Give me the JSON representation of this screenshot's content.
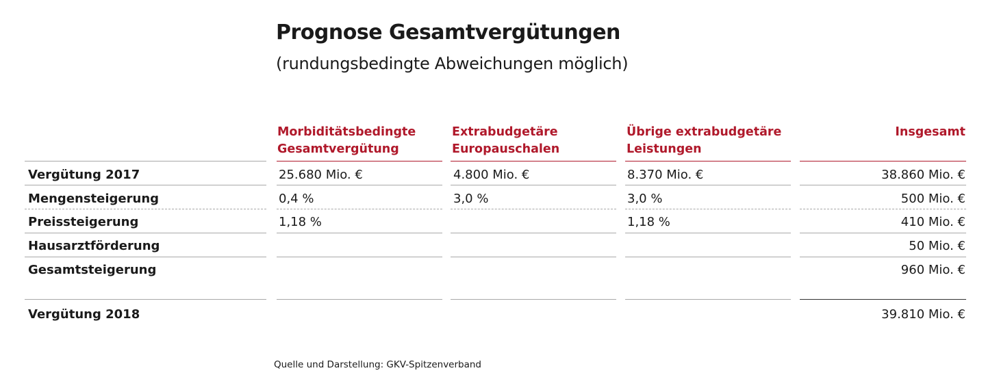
{
  "title": "Prognose Gesamtvergütungen",
  "subtitle": "(rundungsbedingte Abweichungen möglich)",
  "columns": [
    {
      "line1": "Morbiditätsbedingte",
      "line2": "Gesamtvergütung"
    },
    {
      "line1": "Extrabudgetäre",
      "line2": "Europauschalen"
    },
    {
      "line1": "Übrige extrabudgetäre",
      "line2": "Leistungen"
    },
    {
      "line1": "Insgesamt",
      "line2": ""
    }
  ],
  "rows": [
    {
      "label": "Vergütung 2017",
      "values": [
        "25.680 Mio. €",
        "4.800 Mio. €",
        "8.370 Mio. €",
        "38.860 Mio. €"
      ]
    },
    {
      "label": "Mengensteigerung",
      "values": [
        "0,4 %",
        "3,0 %",
        "3,0 %",
        "500 Mio. €"
      ]
    },
    {
      "label": "Preissteigerung",
      "values": [
        "1,18 %",
        "",
        "1,18 %",
        "410 Mio. €"
      ]
    },
    {
      "label": "Hausarztförderung",
      "values": [
        "",
        "",
        "",
        "50 Mio. €"
      ]
    },
    {
      "label": "Gesamtsteigerung",
      "values": [
        "",
        "",
        "",
        "960 Mio. €"
      ]
    },
    {
      "label": "Vergütung 2018",
      "values": [
        "",
        "",
        "",
        "39.810 Mio. €"
      ]
    }
  ],
  "source": "Quelle und Darstellung: GKV-Spitzenverband",
  "colors": {
    "accent": "#b0192b",
    "rule": "#a8a8a8",
    "text": "#1a1a1a"
  }
}
